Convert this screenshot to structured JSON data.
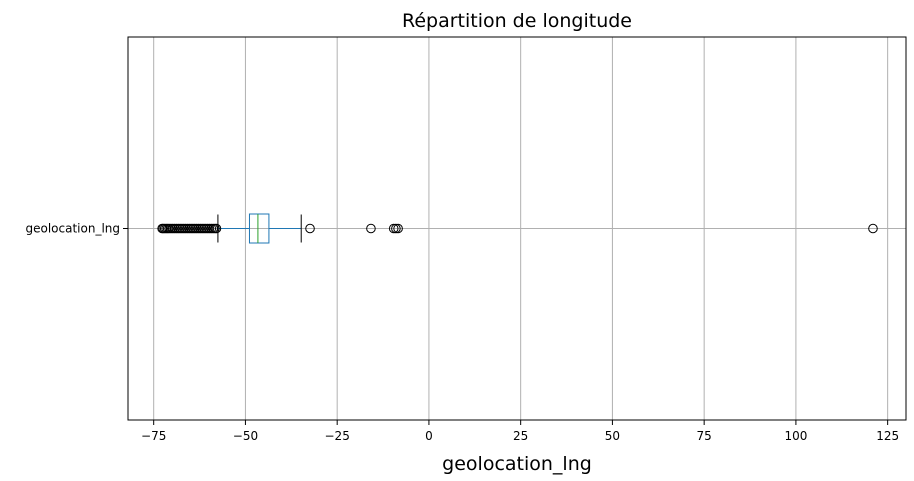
{
  "chart_data": {
    "type": "boxplot",
    "orientation": "horizontal",
    "title": "Répartition de longitude",
    "xlabel": "geolocation_lng",
    "ylabel": "",
    "xlim": [
      -82,
      130
    ],
    "xticks": [
      -75,
      -50,
      -25,
      0,
      25,
      50,
      75,
      100,
      125
    ],
    "xtick_labels": [
      "−75",
      "−50",
      "−25",
      "0",
      "25",
      "50",
      "75",
      "100",
      "125"
    ],
    "grid": true,
    "colors": {
      "box": "#1f77b4",
      "median": "#2ca02c",
      "whisker": "#1f77b4",
      "cap": "#000000",
      "flier": "#000000",
      "grid": "#b0b0b0"
    },
    "series": [
      {
        "name": "geolocation_lng",
        "whisker_low": -57.5,
        "q1": -48.9,
        "median": -46.6,
        "q3": -43.6,
        "whisker_high": -34.8,
        "outliers": [
          -72.7,
          -72.4,
          -72.0,
          -71.6,
          -71.2,
          -70.8,
          -70.3,
          -69.8,
          -69.3,
          -68.8,
          -68.3,
          -67.8,
          -67.3,
          -66.8,
          -66.3,
          -65.8,
          -65.3,
          -64.8,
          -64.3,
          -63.8,
          -63.3,
          -62.8,
          -62.3,
          -61.8,
          -61.3,
          -60.8,
          -60.3,
          -59.8,
          -59.3,
          -58.8,
          -58.3,
          -57.9,
          -32.4,
          -15.8,
          -9.6,
          -9.0,
          -8.4,
          121.0
        ]
      }
    ]
  }
}
